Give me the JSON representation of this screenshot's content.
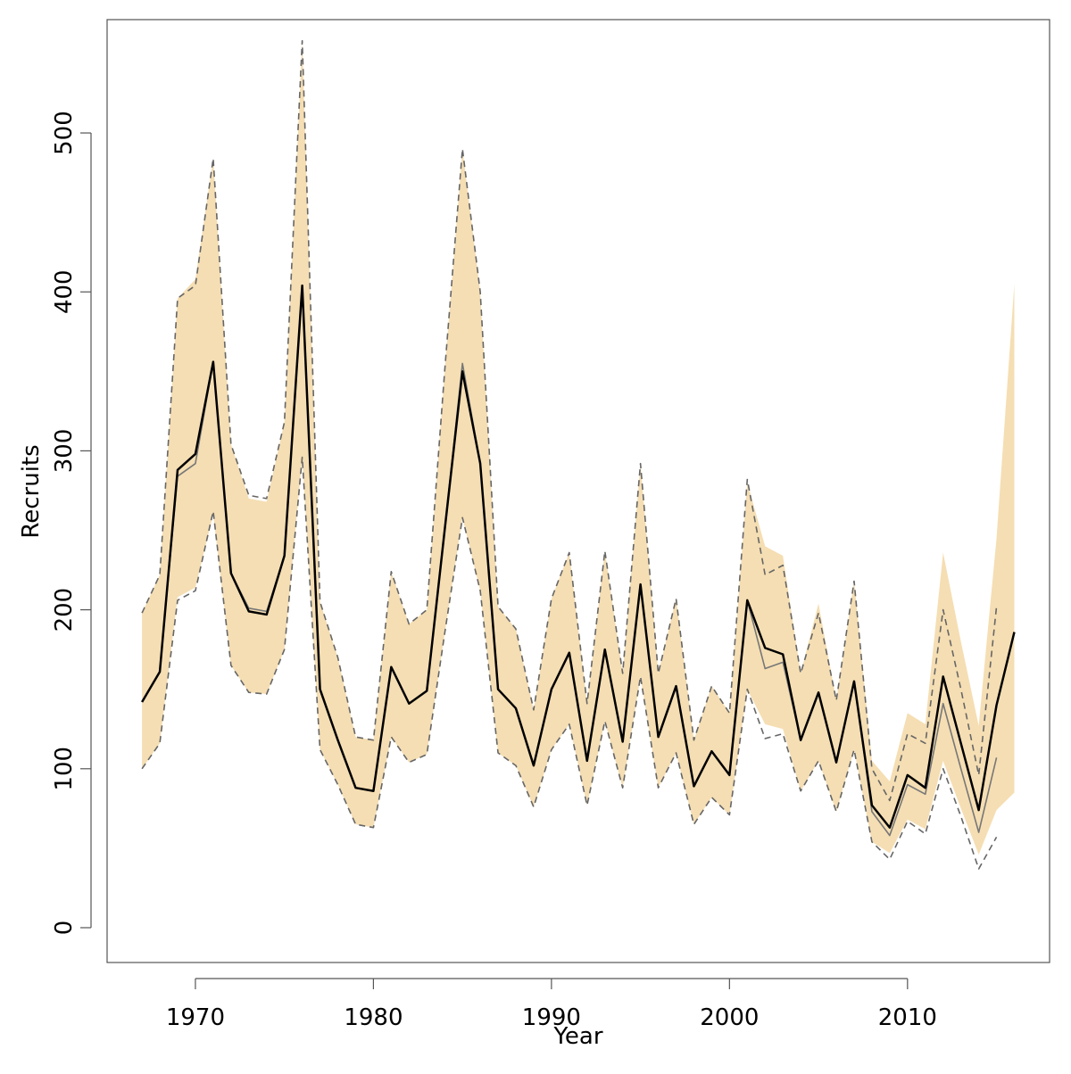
{
  "chart_data": {
    "type": "line",
    "xlabel": "Year",
    "ylabel": "Recruits",
    "x": [
      1967,
      1968,
      1969,
      1970,
      1971,
      1972,
      1973,
      1974,
      1975,
      1976,
      1977,
      1978,
      1979,
      1980,
      1981,
      1982,
      1983,
      1984,
      1985,
      1986,
      1987,
      1988,
      1989,
      1990,
      1991,
      1992,
      1993,
      1994,
      1995,
      1996,
      1997,
      1998,
      1999,
      2000,
      2001,
      2002,
      2003,
      2004,
      2005,
      2006,
      2007,
      2008,
      2009,
      2010,
      2011,
      2012,
      2013,
      2014,
      2015,
      2016
    ],
    "band": {
      "color": "#f5deb3",
      "upper": [
        198,
        222,
        396,
        408,
        484,
        304,
        270,
        268,
        318,
        558,
        205,
        170,
        120,
        118,
        224,
        191,
        200,
        350,
        490,
        400,
        202,
        188,
        137,
        207,
        236,
        141,
        237,
        160,
        292,
        160,
        207,
        118,
        152,
        135,
        280,
        240,
        234,
        160,
        204,
        143,
        218,
        105,
        92,
        135,
        128,
        236,
        180,
        127,
        245,
        405
      ],
      "lower": [
        100,
        116,
        208,
        214,
        260,
        165,
        148,
        147,
        175,
        296,
        112,
        90,
        65,
        63,
        120,
        104,
        109,
        185,
        258,
        212,
        110,
        102,
        76,
        112,
        128,
        77,
        130,
        88,
        158,
        88,
        110,
        65,
        82,
        71,
        150,
        128,
        125,
        86,
        105,
        73,
        112,
        54,
        47,
        68,
        62,
        105,
        75,
        46,
        74,
        85
      ]
    },
    "series": [
      {
        "color": "#000000",
        "width": 2.5,
        "dash": false,
        "values": [
          142,
          161,
          288,
          298,
          356,
          223,
          199,
          197,
          234,
          404,
          150,
          118,
          88,
          86,
          164,
          141,
          149,
          250,
          350,
          292,
          150,
          138,
          102,
          150,
          173,
          105,
          175,
          117,
          216,
          120,
          152,
          89,
          111,
          96,
          206,
          176,
          172,
          118,
          148,
          104,
          155,
          77,
          63,
          96,
          88,
          158,
          116,
          74,
          140,
          186
        ]
      },
      {
        "color": "#777777",
        "width": 1.6,
        "dash": false,
        "values": [
          142,
          161,
          284,
          292,
          356,
          223,
          201,
          199,
          234,
          404,
          150,
          118,
          88,
          86,
          164,
          141,
          149,
          250,
          355,
          292,
          150,
          138,
          102,
          150,
          173,
          105,
          175,
          117,
          216,
          120,
          152,
          89,
          111,
          96,
          206,
          163,
          167,
          118,
          148,
          104,
          155,
          73,
          58,
          90,
          84,
          141,
          100,
          60,
          107,
          null
        ]
      },
      {
        "color": "#666666",
        "width": 1.6,
        "dash": true,
        "values": [
          198,
          222,
          396,
          404,
          484,
          304,
          272,
          270,
          318,
          558,
          205,
          170,
          120,
          118,
          224,
          191,
          200,
          350,
          490,
          400,
          202,
          188,
          137,
          207,
          236,
          141,
          237,
          160,
          292,
          160,
          207,
          118,
          152,
          135,
          282,
          222,
          228,
          160,
          198,
          143,
          218,
          100,
          80,
          122,
          116,
          200,
          150,
          96,
          202,
          null
        ]
      },
      {
        "color": "#666666",
        "width": 1.6,
        "dash": true,
        "values": [
          100,
          116,
          206,
          212,
          262,
          165,
          148,
          147,
          175,
          296,
          112,
          90,
          65,
          63,
          120,
          104,
          109,
          185,
          258,
          212,
          110,
          102,
          76,
          112,
          128,
          77,
          130,
          88,
          158,
          88,
          110,
          65,
          82,
          71,
          150,
          119,
          122,
          86,
          105,
          73,
          112,
          54,
          43,
          67,
          59,
          100,
          70,
          37,
          57,
          null
        ]
      }
    ],
    "xlim": [
      1965.04,
      2017.98
    ],
    "ylim": [
      -21.9,
      571.3
    ],
    "xticks": [
      1970,
      1980,
      1990,
      2000,
      2010
    ],
    "yticks": [
      0,
      100,
      200,
      300,
      400,
      500
    ]
  }
}
